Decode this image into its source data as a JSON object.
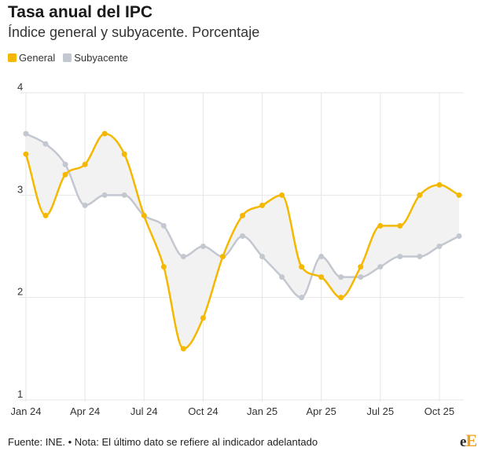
{
  "title": "Tasa anual del IPC",
  "subtitle": "Índice general y subyacente. Porcentaje",
  "footer": "Fuente: INE. • Nota: El último dato se refiere al indicador adelantado",
  "logo": {
    "part1": "e",
    "part2": "E"
  },
  "colors": {
    "general": "#f5b800",
    "subyacente": "#c3c7cf",
    "fill": "#f2f2f2",
    "grid": "#e6e6e6"
  },
  "chart_data": {
    "type": "line",
    "title": "Tasa anual del IPC",
    "subtitle": "Índice general y subyacente. Porcentaje",
    "x": [
      "Jan 24",
      "Feb 24",
      "Mar 24",
      "Apr 24",
      "May 24",
      "Jun 24",
      "Jul 24",
      "Aug 24",
      "Sep 24",
      "Oct 24",
      "Nov 24",
      "Dec 24",
      "Jan 25",
      "Feb 25",
      "Mar 25",
      "Apr 25",
      "May 25",
      "Jun 25",
      "Jul 25",
      "Aug 25",
      "Sep 25",
      "Oct 25",
      "Nov 25"
    ],
    "series": [
      {
        "name": "General",
        "values": [
          3.4,
          2.8,
          3.2,
          3.3,
          3.6,
          3.4,
          2.8,
          2.3,
          1.5,
          1.8,
          2.4,
          2.8,
          2.9,
          3.0,
          2.3,
          2.2,
          2.0,
          2.3,
          2.7,
          2.7,
          3.0,
          3.1,
          3.0
        ]
      },
      {
        "name": "Subyacente",
        "values": [
          3.6,
          3.5,
          3.3,
          2.9,
          3.0,
          3.0,
          2.8,
          2.7,
          2.4,
          2.5,
          2.4,
          2.6,
          2.4,
          2.2,
          2.0,
          2.4,
          2.2,
          2.2,
          2.3,
          2.4,
          2.4,
          2.5,
          2.6
        ]
      }
    ],
    "xticks": [
      {
        "label": "Jan 24",
        "index": 0
      },
      {
        "label": "Apr 24",
        "index": 3
      },
      {
        "label": "Jul 24",
        "index": 6
      },
      {
        "label": "Oct 24",
        "index": 9
      },
      {
        "label": "Jan 25",
        "index": 12
      },
      {
        "label": "Apr 25",
        "index": 15
      },
      {
        "label": "Jul 25",
        "index": 18
      },
      {
        "label": "Oct 25",
        "index": 21
      }
    ],
    "yticks": [
      1,
      2,
      3,
      4
    ],
    "ylim": [
      1,
      4
    ],
    "legend": "top-left"
  }
}
